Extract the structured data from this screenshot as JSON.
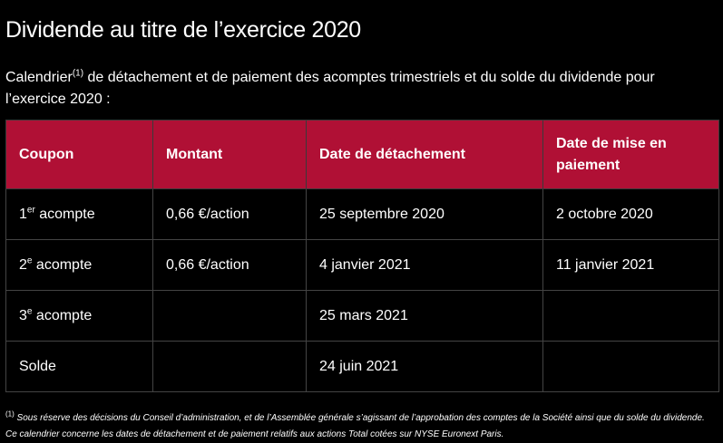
{
  "title": "Dividende au titre de l’exercice 2020",
  "intro": {
    "before": "Calendrier",
    "sup": "(1)",
    "after": " de détachement et de paiement des acomptes trimestriels et du solde du dividende pour l’exercice 2020 :"
  },
  "table": {
    "headers": [
      "Coupon",
      "Montant",
      "Date de détachement",
      "Date de mise en paiement"
    ],
    "rows": [
      {
        "coupon_num": "1",
        "coupon_sup": "er",
        "coupon_rest": " acompte",
        "montant": "0,66 €/action",
        "detachement": "25 septembre 2020",
        "paiement": "2 octobre 2020"
      },
      {
        "coupon_num": "2",
        "coupon_sup": "e",
        "coupon_rest": " acompte",
        "montant": "0,66 €/action",
        "detachement": "4 janvier 2021",
        "paiement": "11 janvier 2021"
      },
      {
        "coupon_num": "3",
        "coupon_sup": "e",
        "coupon_rest": " acompte",
        "montant": "",
        "detachement": "25 mars 2021",
        "paiement": ""
      },
      {
        "coupon_num": "Solde",
        "coupon_sup": "",
        "coupon_rest": "",
        "montant": "",
        "detachement": "24 juin 2021",
        "paiement": ""
      }
    ]
  },
  "footnote": {
    "sup": "(1)",
    "text": " Sous réserve des décisions du Conseil d’administration, et de l’Assemblée générale s’agissant de l’approbation des comptes de la Société ainsi que du solde du dividende. Ce calendrier concerne les dates de détachement et de paiement relatifs aux actions Total cotées sur NYSE Euronext Paris."
  },
  "colors": {
    "background": "#000000",
    "header_bg": "#b01035",
    "text": "#ffffff"
  }
}
